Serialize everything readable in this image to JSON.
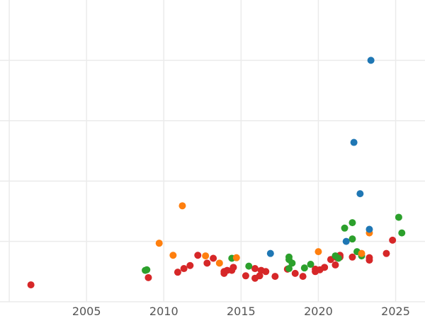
{
  "chart_data": {
    "type": "scatter",
    "title": "",
    "xlabel": "",
    "ylabel": "",
    "xlim": [
      1999.4,
      2026.9
    ],
    "ylim": [
      0,
      5
    ],
    "x_ticks": [
      2000,
      2005,
      2010,
      2015,
      2020,
      2025
    ],
    "x_tick_labels": [
      "",
      "2005",
      "2010",
      "2015",
      "2020",
      "2025"
    ],
    "y_gridlines": [
      0,
      1,
      2,
      3,
      4
    ],
    "grid": true,
    "series": [
      {
        "name": "red",
        "color": "#d62728",
        "points": [
          [
            2001.4,
            0.28
          ],
          [
            2009.0,
            0.4
          ],
          [
            2010.9,
            0.49
          ],
          [
            2011.3,
            0.55
          ],
          [
            2011.7,
            0.6
          ],
          [
            2012.2,
            0.77
          ],
          [
            2012.8,
            0.64
          ],
          [
            2013.2,
            0.72
          ],
          [
            2013.9,
            0.47
          ],
          [
            2013.9,
            0.5
          ],
          [
            2014.1,
            0.52
          ],
          [
            2014.4,
            0.52
          ],
          [
            2014.5,
            0.57
          ],
          [
            2015.3,
            0.43
          ],
          [
            2015.9,
            0.55
          ],
          [
            2015.9,
            0.39
          ],
          [
            2016.2,
            0.43
          ],
          [
            2016.3,
            0.52
          ],
          [
            2016.6,
            0.5
          ],
          [
            2017.2,
            0.42
          ],
          [
            2018.0,
            0.54
          ],
          [
            2018.5,
            0.47
          ],
          [
            2019.0,
            0.42
          ],
          [
            2019.8,
            0.54
          ],
          [
            2019.8,
            0.5
          ],
          [
            2020.1,
            0.53
          ],
          [
            2020.4,
            0.57
          ],
          [
            2020.8,
            0.7
          ],
          [
            2021.1,
            0.61
          ],
          [
            2021.2,
            0.73
          ],
          [
            2021.4,
            0.77
          ],
          [
            2021.4,
            0.74
          ],
          [
            2022.2,
            0.74
          ],
          [
            2023.3,
            0.73
          ],
          [
            2023.3,
            0.69
          ],
          [
            2024.4,
            0.8
          ],
          [
            2024.8,
            1.02
          ]
        ]
      },
      {
        "name": "green",
        "color": "#2ca02c",
        "points": [
          [
            2008.8,
            0.52
          ],
          [
            2008.9,
            0.53
          ],
          [
            2014.4,
            0.72
          ],
          [
            2015.5,
            0.59
          ],
          [
            2018.1,
            0.74
          ],
          [
            2018.1,
            0.7
          ],
          [
            2018.1,
            0.55
          ],
          [
            2018.3,
            0.64
          ],
          [
            2019.1,
            0.56
          ],
          [
            2019.5,
            0.62
          ],
          [
            2021.1,
            0.76
          ],
          [
            2021.3,
            0.72
          ],
          [
            2021.7,
            1.22
          ],
          [
            2022.2,
            1.31
          ],
          [
            2022.2,
            1.04
          ],
          [
            2022.5,
            0.83
          ],
          [
            2022.8,
            0.76
          ],
          [
            2025.2,
            1.4
          ],
          [
            2025.4,
            1.14
          ]
        ]
      },
      {
        "name": "orange",
        "color": "#ff7f0e",
        "points": [
          [
            2009.7,
            0.97
          ],
          [
            2010.6,
            0.77
          ],
          [
            2011.2,
            1.59
          ],
          [
            2012.7,
            0.76
          ],
          [
            2013.6,
            0.64
          ],
          [
            2014.7,
            0.73
          ],
          [
            2020.0,
            0.83
          ],
          [
            2022.8,
            0.8
          ],
          [
            2023.3,
            1.14
          ]
        ]
      },
      {
        "name": "blue",
        "color": "#1f77b4",
        "points": [
          [
            2016.9,
            0.8
          ],
          [
            2021.8,
            1.0
          ],
          [
            2022.3,
            2.64
          ],
          [
            2022.7,
            1.79
          ],
          [
            2023.3,
            1.2
          ],
          [
            2023.4,
            4.0
          ]
        ]
      }
    ]
  }
}
